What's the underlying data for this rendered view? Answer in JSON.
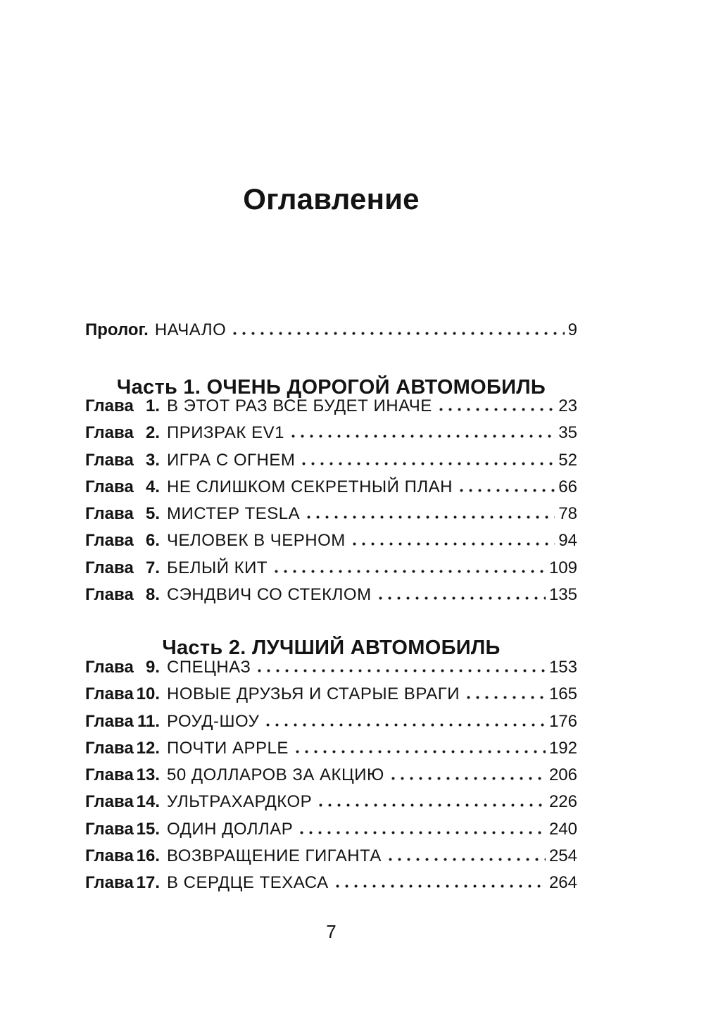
{
  "page": {
    "title": "Оглавление",
    "folio": "7"
  },
  "prologue": {
    "label": "Пролог.",
    "title": "НАЧАЛО",
    "page": "9"
  },
  "parts": [
    {
      "heading": "Часть 1. ОЧЕНЬ ДОРОГОЙ АВТОМОБИЛЬ",
      "chapters": [
        {
          "label": "Глава",
          "num": "1.",
          "title": "В ЭТОТ РАЗ ВСЕ БУДЕТ ИНАЧЕ",
          "page": "23"
        },
        {
          "label": "Глава",
          "num": "2.",
          "title": "ПРИЗРАК EV1",
          "page": "35"
        },
        {
          "label": "Глава",
          "num": "3.",
          "title": "ИГРА С ОГНЕМ",
          "page": "52"
        },
        {
          "label": "Глава",
          "num": "4.",
          "title": "НЕ СЛИШКОМ СЕКРЕТНЫЙ ПЛАН",
          "page": "66"
        },
        {
          "label": "Глава",
          "num": "5.",
          "title": "МИСТЕР TESLA",
          "page": "78"
        },
        {
          "label": "Глава",
          "num": "6.",
          "title": "ЧЕЛОВЕК В ЧЕРНОМ",
          "page": "94"
        },
        {
          "label": "Глава",
          "num": "7.",
          "title": "БЕЛЫЙ КИТ",
          "page": "109"
        },
        {
          "label": "Глава",
          "num": "8.",
          "title": "СЭНДВИЧ СО СТЕКЛОМ",
          "page": "135"
        }
      ]
    },
    {
      "heading": "Часть 2. ЛУЧШИЙ АВТОМОБИЛЬ",
      "chapters": [
        {
          "label": "Глава",
          "num": "9.",
          "title": "СПЕЦНАЗ",
          "page": "153"
        },
        {
          "label": "Глава",
          "num": "10.",
          "title": "НОВЫЕ ДРУЗЬЯ И СТАРЫЕ ВРАГИ",
          "page": "165"
        },
        {
          "label": "Глава",
          "num": "11.",
          "title": "РОУД-ШОУ",
          "page": "176"
        },
        {
          "label": "Глава",
          "num": "12.",
          "title": "ПОЧТИ APPLE",
          "page": "192"
        },
        {
          "label": "Глава",
          "num": "13.",
          "title": "50 ДОЛЛАРОВ ЗА АКЦИЮ",
          "page": "206"
        },
        {
          "label": "Глава",
          "num": "14.",
          "title": "УЛЬТРАХАРДКОР",
          "page": "226"
        },
        {
          "label": "Глава",
          "num": "15.",
          "title": "ОДИН ДОЛЛАР",
          "page": "240"
        },
        {
          "label": "Глава",
          "num": "16.",
          "title": "ВОЗВРАЩЕНИЕ ГИГАНТА",
          "page": "254"
        },
        {
          "label": "Глава",
          "num": "17.",
          "title": "В СЕРДЦЕ ТЕХАСА",
          "page": "264"
        }
      ]
    }
  ]
}
